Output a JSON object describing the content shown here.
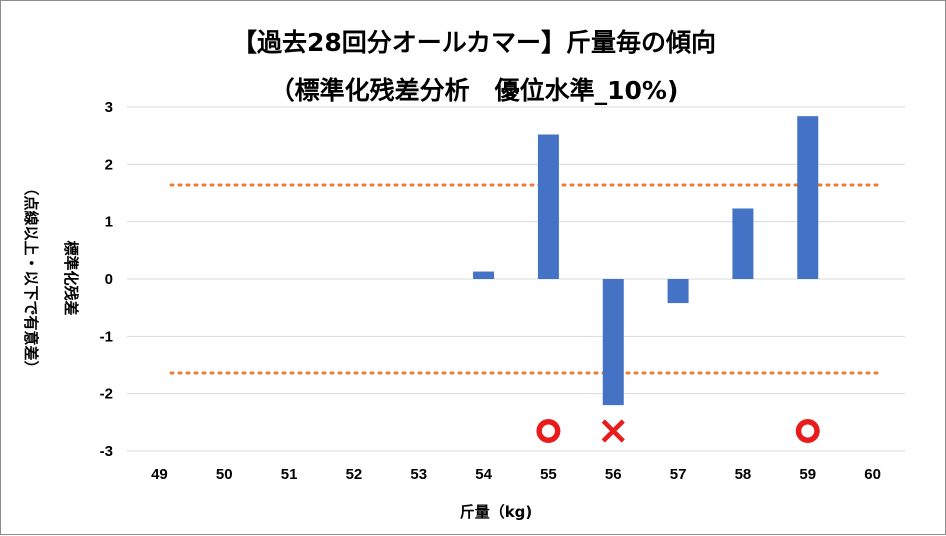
{
  "chart_data": {
    "type": "bar",
    "title": "【過去28回分オールカマー】斤量毎の傾向",
    "subtitle": "（標準化残差分析　優位水準_10%)",
    "xlabel": "斤量（kg)",
    "ylabel_line1": "標準化残差",
    "ylabel_line2": "（点線以上・以下で有意差）",
    "categories": [
      "49",
      "50",
      "51",
      "52",
      "53",
      "54",
      "55",
      "56",
      "57",
      "58",
      "59",
      "60"
    ],
    "values": [
      0,
      0,
      0,
      0,
      0,
      0.13,
      2.52,
      -2.2,
      -0.42,
      1.23,
      2.84,
      0
    ],
    "ylim": [
      -3,
      3
    ],
    "yticks": [
      "3",
      "2",
      "1",
      "0",
      "-1",
      "-2",
      "-3"
    ],
    "threshold_lines": [
      1.64,
      -1.64
    ],
    "markers": [
      {
        "category": "55",
        "symbol": "circle"
      },
      {
        "category": "56",
        "symbol": "cross"
      },
      {
        "category": "59",
        "symbol": "circle"
      }
    ],
    "grid": true,
    "bar_color": "#4472c4",
    "threshold_color": "#ed7d31",
    "circle_color": "#e81c1c",
    "cross_color": "#e81c1c"
  }
}
